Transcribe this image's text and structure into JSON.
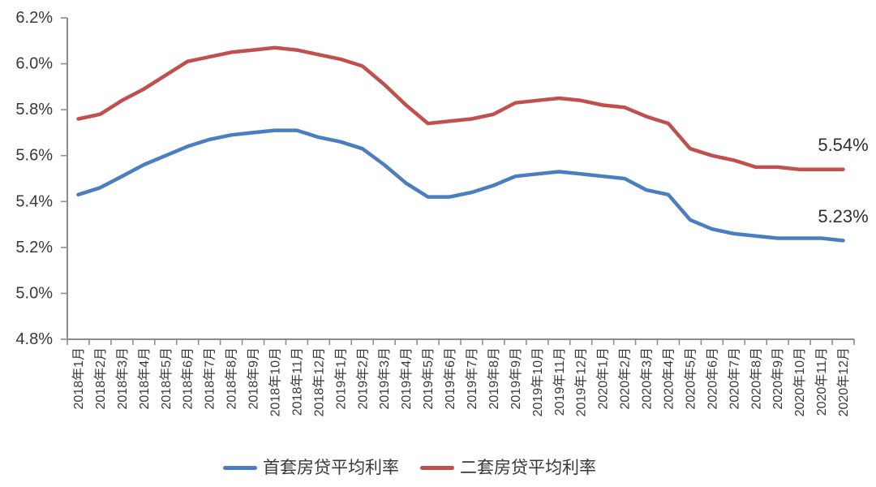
{
  "chart_data": {
    "type": "line",
    "categories": [
      "2018年1月",
      "2018年2月",
      "2018年3月",
      "2018年4月",
      "2018年5月",
      "2018年6月",
      "2018年7月",
      "2018年8月",
      "2018年9月",
      "2018年10月",
      "2018年11月",
      "2018年12月",
      "2019年1月",
      "2019年2月",
      "2019年3月",
      "2019年4月",
      "2019年5月",
      "2019年6月",
      "2019年7月",
      "2019年8月",
      "2019年9月",
      "2019年10月",
      "2019年11月",
      "2019年12月",
      "2020年1月",
      "2020年2月",
      "2020年3月",
      "2020年4月",
      "2020年5月",
      "2020年6月",
      "2020年7月",
      "2020年8月",
      "2020年9月",
      "2020年10月",
      "2020年11月",
      "2020年12月"
    ],
    "series": [
      {
        "key": "first-home",
        "name": "首套房贷平均利率",
        "color": "#4A7EBE",
        "end_label": "5.23%",
        "values": [
          5.43,
          5.46,
          5.51,
          5.56,
          5.6,
          5.64,
          5.67,
          5.69,
          5.7,
          5.71,
          5.71,
          5.68,
          5.66,
          5.63,
          5.56,
          5.48,
          5.42,
          5.42,
          5.44,
          5.47,
          5.51,
          5.52,
          5.53,
          5.52,
          5.51,
          5.5,
          5.45,
          5.43,
          5.32,
          5.28,
          5.26,
          5.25,
          5.24,
          5.24,
          5.24,
          5.23
        ]
      },
      {
        "key": "second-home",
        "name": "二套房贷平均利率",
        "color": "#C0504D",
        "end_label": "5.54%",
        "values": [
          5.76,
          5.78,
          5.84,
          5.89,
          5.95,
          6.01,
          6.03,
          6.05,
          6.06,
          6.07,
          6.06,
          6.04,
          6.02,
          5.99,
          5.91,
          5.82,
          5.74,
          5.75,
          5.76,
          5.78,
          5.83,
          5.84,
          5.85,
          5.84,
          5.82,
          5.81,
          5.77,
          5.74,
          5.63,
          5.6,
          5.58,
          5.55,
          5.55,
          5.54,
          5.54,
          5.54
        ]
      }
    ],
    "ylim": [
      4.8,
      6.2
    ],
    "y_ticks": [
      4.8,
      5.0,
      5.2,
      5.4,
      5.6,
      5.8,
      6.0,
      6.2
    ],
    "y_tick_labels": [
      "4.8%",
      "5.0%",
      "5.2%",
      "5.4%",
      "5.6%",
      "5.8%",
      "6.0%",
      "6.2%"
    ],
    "title": "",
    "xlabel": "",
    "ylabel": "",
    "grid": false,
    "legend_position": "bottom"
  }
}
